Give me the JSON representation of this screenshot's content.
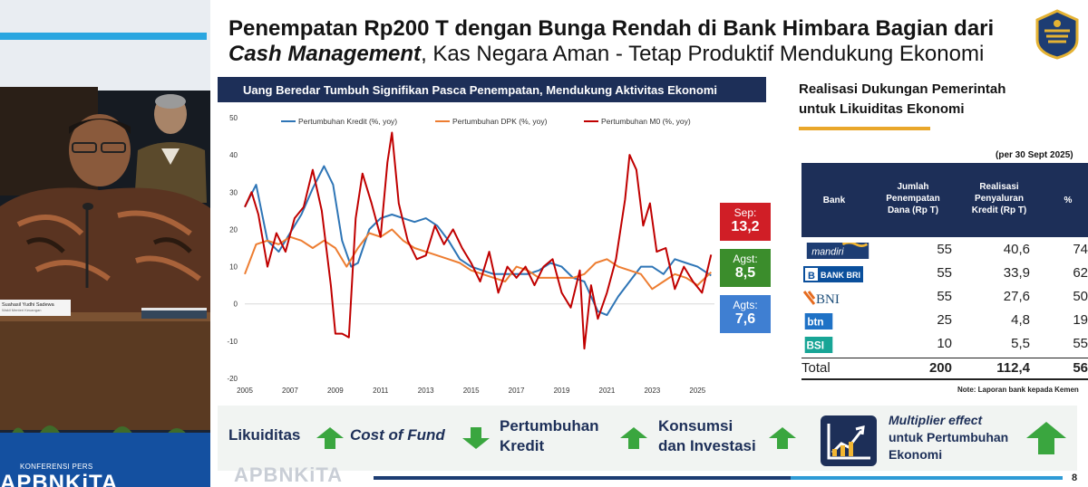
{
  "slide": {
    "title_line1": "Penempatan Rp200 T dengan Bunga Rendah di Bank Himbara Bagian dari",
    "title_line2_bold": "Cash Management",
    "title_line2_rest": ", Kas Negara Aman - Tetap Produktif Mendukung Ekonomi",
    "page_number": "8",
    "watermark": "APBNKiTA"
  },
  "chart_banner": "Uang Beredar Tumbuh Signifikan Pasca Penempatan, Mendukung Aktivitas Ekonomi",
  "badges": [
    {
      "label": "Sep:",
      "value": "13,2",
      "color": "#d01e26"
    },
    {
      "label": "Agst:",
      "value": "8,5",
      "color": "#3b8d2c"
    },
    {
      "label": "Agts:",
      "value": "7,6",
      "color": "#3f7fd2"
    }
  ],
  "chart_data": {
    "type": "line",
    "title": "Uang Beredar Tumbuh Signifikan Pasca Penempatan, Mendukung Aktivitas Ekonomi",
    "xlabel": "",
    "ylabel": "",
    "ylim": [
      -20,
      50
    ],
    "yticks": [
      -20,
      -10,
      0,
      10,
      20,
      30,
      40,
      50
    ],
    "xlim": [
      2005,
      2025.75
    ],
    "xticks": [
      2005,
      2007,
      2009,
      2011,
      2013,
      2015,
      2017,
      2019,
      2021,
      2023,
      2025
    ],
    "legend_position": "top",
    "grid": false,
    "series": [
      {
        "name": "Pertumbuhan Kredit (%, yoy)",
        "color": "#2e75b6",
        "x": [
          2005,
          2005.5,
          2006,
          2006.5,
          2007,
          2007.5,
          2008,
          2008.5,
          2008.9,
          2009.3,
          2009.7,
          2010,
          2010.5,
          2011,
          2011.5,
          2012,
          2012.5,
          2013,
          2013.5,
          2014,
          2014.5,
          2015,
          2015.5,
          2016,
          2016.5,
          2017,
          2017.5,
          2018,
          2018.5,
          2019,
          2019.5,
          2020,
          2020.3,
          2020.6,
          2021,
          2021.5,
          2022,
          2022.5,
          2023,
          2023.5,
          2024,
          2024.5,
          2025,
          2025.6
        ],
        "y": [
          26,
          32,
          17,
          14,
          19,
          24,
          31,
          37,
          32,
          17,
          10,
          11,
          20,
          23,
          24,
          23,
          22,
          23,
          21,
          17,
          12,
          10,
          9,
          8,
          8,
          8,
          8,
          9,
          11,
          10,
          7,
          6,
          2,
          -2,
          -3,
          2,
          6,
          10,
          10,
          8,
          12,
          11,
          10,
          7.6
        ]
      },
      {
        "name": "Pertumbuhan DPK (%, yoy)",
        "color": "#ed7d31",
        "x": [
          2005,
          2005.5,
          2006,
          2006.5,
          2007,
          2007.5,
          2008,
          2008.5,
          2009,
          2009.5,
          2010,
          2010.5,
          2011,
          2011.5,
          2012,
          2012.5,
          2013,
          2013.5,
          2014,
          2014.5,
          2015,
          2015.5,
          2016,
          2016.5,
          2017,
          2017.5,
          2018,
          2018.5,
          2019,
          2019.5,
          2020,
          2020.5,
          2021,
          2021.5,
          2022,
          2022.5,
          2023,
          2023.5,
          2024,
          2024.5,
          2025,
          2025.6
        ],
        "y": [
          8,
          16,
          17,
          16,
          18,
          17,
          15,
          17,
          15,
          10,
          15,
          19,
          18,
          20,
          17,
          15,
          14,
          13,
          12,
          11,
          9,
          8,
          7,
          6,
          10,
          9,
          7,
          7,
          7,
          7,
          8,
          11,
          12,
          10,
          9,
          8,
          4,
          6,
          8,
          7,
          5,
          8.5
        ]
      },
      {
        "name": "Pertumbuhan M0 (%, yoy)",
        "color": "#c00000",
        "x": [
          2005,
          2005.3,
          2005.6,
          2006,
          2006.4,
          2006.8,
          2007.2,
          2007.6,
          2008,
          2008.4,
          2008.8,
          2009,
          2009.3,
          2009.6,
          2009.9,
          2010.2,
          2010.6,
          2011,
          2011.3,
          2011.5,
          2011.8,
          2012.2,
          2012.6,
          2013,
          2013.4,
          2013.8,
          2014.2,
          2014.6,
          2015,
          2015.4,
          2015.8,
          2016.2,
          2016.6,
          2017,
          2017.4,
          2017.8,
          2018.2,
          2018.6,
          2019,
          2019.4,
          2019.8,
          2020,
          2020.3,
          2020.6,
          2021,
          2021.4,
          2021.8,
          2022,
          2022.3,
          2022.6,
          2022.9,
          2023.2,
          2023.6,
          2024,
          2024.4,
          2024.8,
          2025.2,
          2025.6
        ],
        "y": [
          26,
          30,
          24,
          10,
          19,
          14,
          23,
          26,
          36,
          25,
          5,
          -8,
          -8,
          -9,
          23,
          35,
          27,
          18,
          38,
          46,
          27,
          17,
          12,
          13,
          21,
          16,
          20,
          15,
          11,
          6,
          14,
          3,
          10,
          7,
          10,
          5,
          10,
          12,
          3,
          -1,
          9,
          -12,
          5,
          -4,
          3,
          12,
          28,
          40,
          36,
          21,
          27,
          14,
          15,
          4,
          10,
          6,
          3,
          13.2
        ]
      }
    ]
  },
  "table": {
    "title_line1": "Realisasi Dukungan Pemerintah",
    "title_line2": "untuk Likuiditas Ekonomi",
    "as_of": "(per 30 Sept 2025)",
    "headers": [
      "Bank",
      "Jumlah Penempatan Dana (Rp T)",
      "Realisasi Penyaluran Kredit (Rp T)",
      "%"
    ],
    "header_lines": {
      "col0": [
        "Bank"
      ],
      "col1": [
        "Jumlah",
        "Penempatan",
        "Dana (Rp T)"
      ],
      "col2": [
        "Realisasi",
        "Penyaluran",
        "Kredit (Rp T)"
      ],
      "col3": [
        "%"
      ]
    },
    "rows": [
      {
        "bank": "mandiri",
        "logo_color": "#1d3d73",
        "penempatan": "55",
        "realisasi": "40,6",
        "persen": "74"
      },
      {
        "bank": "BANK BRI",
        "logo_color": "#0a4f9c",
        "penempatan": "55",
        "realisasi": "33,9",
        "persen": "62"
      },
      {
        "bank": "BNI",
        "logo_color": "#e56b1f",
        "penempatan": "55",
        "realisasi": "27,6",
        "persen": "50"
      },
      {
        "bank": "btn",
        "logo_color": "#1f72c6",
        "penempatan": "25",
        "realisasi": "4,8",
        "persen": "19"
      },
      {
        "bank": "BSI",
        "logo_color": "#18a596",
        "penempatan": "10",
        "realisasi": "5,5",
        "persen": "55"
      }
    ],
    "total": {
      "label": "Total",
      "penempatan": "200",
      "realisasi": "112,4",
      "persen": "56"
    },
    "note": "Note: Laporan bank kepada Kemen"
  },
  "bottom_flow": {
    "likuiditas": "Likuiditas",
    "cost_of_fund": "Cost of Fund",
    "kredit_line1": "Pertumbuhan",
    "kredit_line2": "Kredit",
    "konsumsi_line1": "Konsumsi",
    "konsumsi_line2": "dan Investasi",
    "mult_line1": "Multiplier effect",
    "mult_line2": "untuk Pertumbuhan",
    "mult_line3": "Ekonomi"
  },
  "video": {
    "nameplate": "Suahasil Yudhi Sadewa",
    "nameplate_sub": "Wakil Menteri Keuangan",
    "konferensi": "KONFERENSI PERS",
    "apbn": "APBNKiTA"
  }
}
